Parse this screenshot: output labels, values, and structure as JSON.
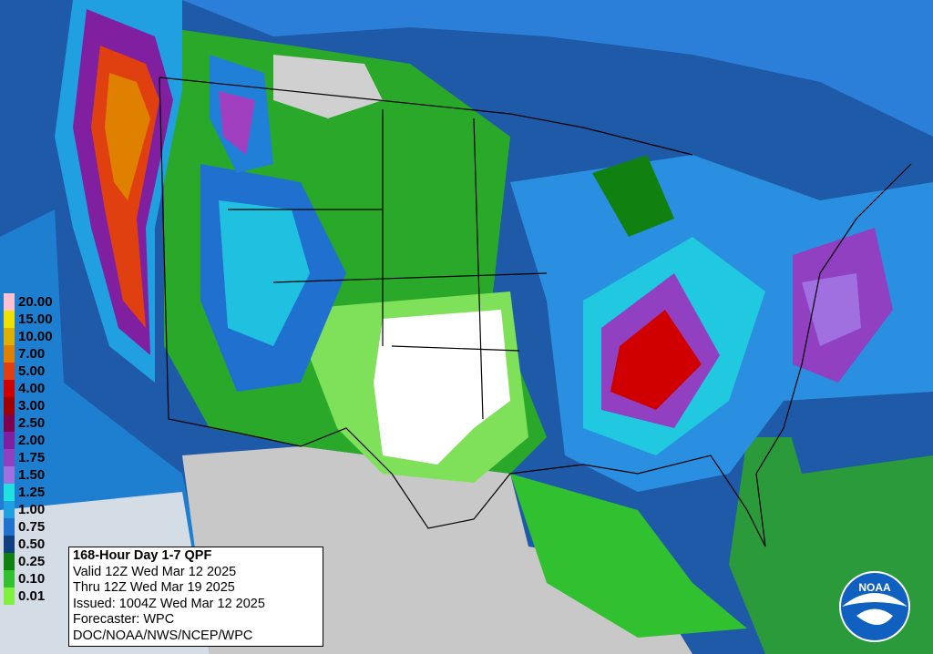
{
  "legend": {
    "items": [
      {
        "label": "20.00",
        "color": "#ffc0d0"
      },
      {
        "label": "15.00",
        "color": "#f0e000"
      },
      {
        "label": "10.00",
        "color": "#e0b000"
      },
      {
        "label": "7.00",
        "color": "#e08000"
      },
      {
        "label": "5.00",
        "color": "#e04010"
      },
      {
        "label": "4.00",
        "color": "#d00000"
      },
      {
        "label": "3.00",
        "color": "#a00000"
      },
      {
        "label": "2.50",
        "color": "#800050"
      },
      {
        "label": "2.00",
        "color": "#8020a0"
      },
      {
        "label": "1.75",
        "color": "#9040c0"
      },
      {
        "label": "1.50",
        "color": "#a070e0"
      },
      {
        "label": "1.25",
        "color": "#20e0e0"
      },
      {
        "label": "1.00",
        "color": "#20a0e0"
      },
      {
        "label": "0.75",
        "color": "#2070d0"
      },
      {
        "label": "0.50",
        "color": "#104080"
      },
      {
        "label": "0.25",
        "color": "#108010"
      },
      {
        "label": "0.10",
        "color": "#30c030"
      },
      {
        "label": "0.01",
        "color": "#80f040"
      }
    ]
  },
  "info": {
    "title": "168-Hour Day 1-7 QPF",
    "lines": [
      "Valid 12Z Wed Mar 12 2025",
      "Thru 12Z Wed Mar 19 2025",
      "Issued: 1004Z Wed Mar 12 2025",
      "Forecaster: WPC",
      "DOC/NOAA/NWS/NCEP/WPC"
    ]
  },
  "logo": {
    "text": "NOAA"
  }
}
